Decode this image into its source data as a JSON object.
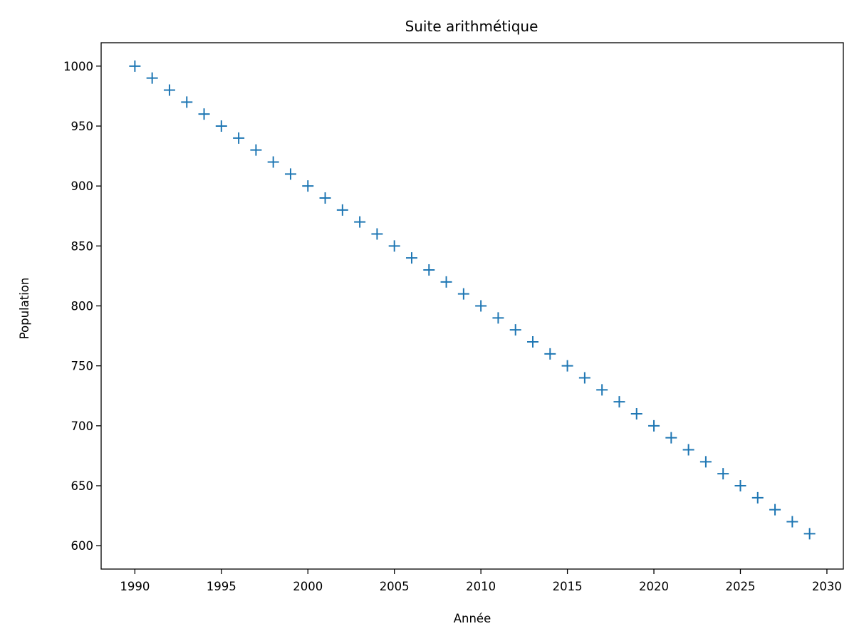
{
  "chart_data": {
    "type": "scatter",
    "title": "Suite arithmétique",
    "xlabel": "Année",
    "ylabel": "Population",
    "marker": "+",
    "color": "#1f77b4",
    "xlim": [
      1988.05,
      2030.95
    ],
    "ylim": [
      580.5,
      1019.5
    ],
    "xticks": [
      1990,
      1995,
      2000,
      2005,
      2010,
      2015,
      2020,
      2025,
      2030
    ],
    "yticks": [
      600,
      650,
      700,
      750,
      800,
      850,
      900,
      950,
      1000
    ],
    "grid": false,
    "series": [
      {
        "x": [
          1990,
          1991,
          1992,
          1993,
          1994,
          1995,
          1996,
          1997,
          1998,
          1999,
          2000,
          2001,
          2002,
          2003,
          2004,
          2005,
          2006,
          2007,
          2008,
          2009,
          2010,
          2011,
          2012,
          2013,
          2014,
          2015,
          2016,
          2017,
          2018,
          2019,
          2020,
          2021,
          2022,
          2023,
          2024,
          2025,
          2026,
          2027,
          2028,
          2029
        ],
        "y": [
          1000,
          990,
          980,
          970,
          960,
          950,
          940,
          930,
          920,
          910,
          900,
          890,
          880,
          870,
          860,
          850,
          840,
          830,
          820,
          810,
          800,
          790,
          780,
          770,
          760,
          750,
          740,
          730,
          720,
          710,
          700,
          690,
          680,
          670,
          660,
          650,
          640,
          630,
          620,
          610
        ]
      }
    ]
  }
}
